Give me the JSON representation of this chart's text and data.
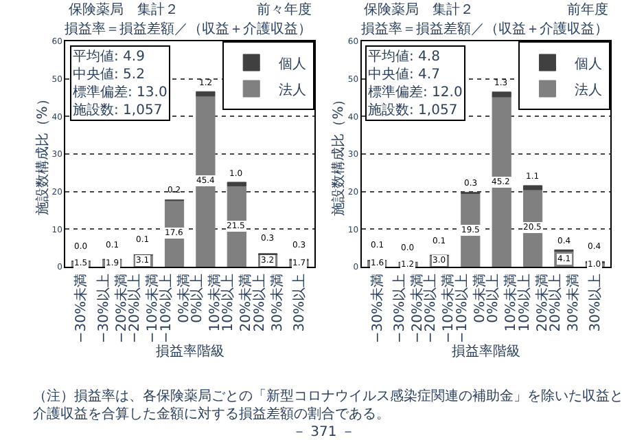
{
  "chart_data": [
    {
      "type": "bar",
      "title": "保険薬局　集計２",
      "subtitle": "前々年度",
      "xlabel": "損益率階級",
      "ylabel": "施設数構成比（%）",
      "categories": [
        "−30%未満",
        "−30%以上\n−20%未満",
        "−20%以上\n−10%未満",
        "−10%以上\n0%未満",
        "0%以上\n10%未満",
        "10%以上\n20%未満",
        "20%以上\n30%未満",
        "30%以上"
      ],
      "series": [
        {
          "name": "法人",
          "color": "#808080",
          "values": [
            1.5,
            1.9,
            3.1,
            17.6,
            45.4,
            21.5,
            3.2,
            1.7
          ],
          "value_labels": [
            "1.5",
            "1.9",
            "3.1",
            "17.6",
            "45.4",
            "21.5",
            "3.2",
            "1.7"
          ]
        },
        {
          "name": "個人",
          "color": "#404040",
          "values": [
            0.0,
            0.1,
            0.1,
            0.2,
            1.2,
            1.0,
            0.3,
            0.3
          ],
          "value_labels": [
            "0.0",
            "0.1",
            "0.1",
            "0.2",
            "1.2",
            "1.0",
            "0.3",
            "0.3"
          ]
        }
      ],
      "stacked": true,
      "data_labels": true,
      "ylim": [
        0,
        60
      ],
      "yticks": [
        0,
        10,
        20,
        30,
        40,
        50,
        60
      ],
      "grid": "y",
      "legend": "top right",
      "annotations": [
        "損益率＝損益差額／（収益＋介護収益）",
        "平均値: 4.9\n中央値: 5.2\n標準偏差: 13.0\n施設数: 1,057"
      ]
    },
    {
      "type": "bar",
      "title": "保険薬局　集計２",
      "subtitle": "前年度",
      "xlabel": "損益率階級",
      "ylabel": "施設数構成比（%）",
      "categories": [
        "−30%未満",
        "−30%以上\n−20%未満",
        "−20%以上\n−10%未満",
        "−10%以上\n0%未満",
        "0%以上\n10%未満",
        "10%以上\n20%未満",
        "20%以上\n30%未満",
        "30%以上"
      ],
      "series": [
        {
          "name": "法人",
          "color": "#808080",
          "values": [
            1.6,
            1.2,
            3.0,
            19.5,
            45.2,
            20.5,
            4.1,
            1.0
          ],
          "value_labels": [
            "1.6",
            "1.2",
            "3.0",
            "19.5",
            "45.2",
            "20.5",
            "4.1",
            "1.0"
          ]
        },
        {
          "name": "個人",
          "color": "#404040",
          "values": [
            0.1,
            0.0,
            0.1,
            0.3,
            1.3,
            1.1,
            0.4,
            0.4
          ],
          "value_labels": [
            "0.1",
            "0.0",
            "0.1",
            "0.3",
            "1.3",
            "1.1",
            "0.4",
            "0.4"
          ]
        }
      ],
      "stacked": true,
      "data_labels": true,
      "ylim": [
        0,
        60
      ],
      "yticks": [
        0,
        10,
        20,
        30,
        40,
        50,
        60
      ],
      "grid": "y",
      "legend": "top right",
      "annotations": [
        "損益率＝損益差額／（収益＋介護収益）",
        "平均値: 4.8\n中央値: 4.7\n標準偏差: 12.0\n施設数: 1,057",
        "（注）損益率は、各保険薬局ごとの「新型コロナウイルス感染症関連の補助金」を除いた収益と介護収益を合算した金額に対する損益差額の割合である。",
        "－ 371 －"
      ]
    }
  ]
}
